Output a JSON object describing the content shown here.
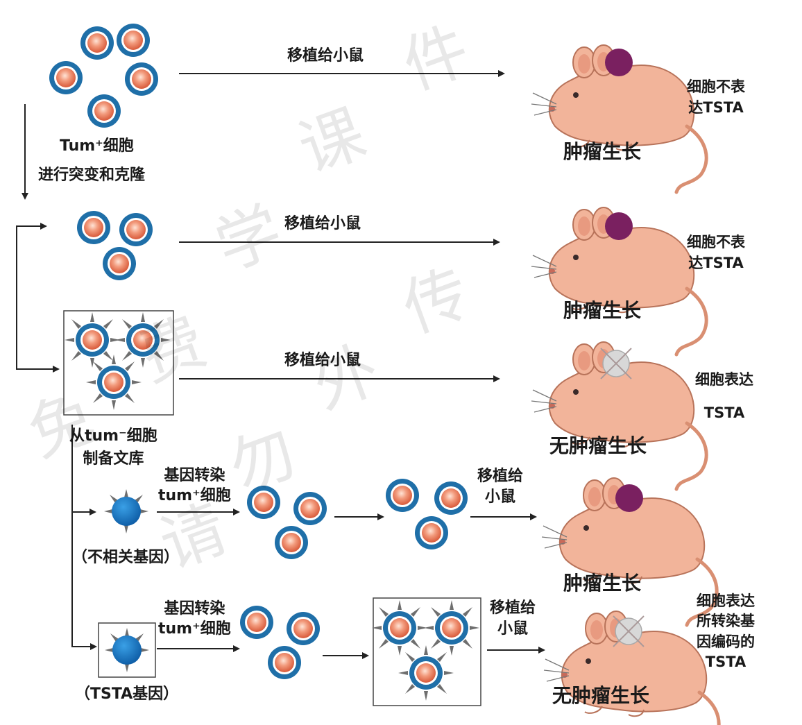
{
  "arrow_label": "移植给小鼠",
  "arrow_label_split": [
    "移植给",
    "小鼠"
  ],
  "tum_plus_cells": "Tum⁺细胞",
  "mutate_clone": "进行突变和克隆",
  "library_label": [
    "从tum⁻细胞",
    "制备文库"
  ],
  "transfect_label": [
    "基因转染",
    "tum⁺细胞"
  ],
  "unrelated_gene": "（不相关基因）",
  "tsta_gene": "（TSTA基因）",
  "tumor_growth": "肿瘤生长",
  "no_tumor_growth": "无肿瘤生长",
  "result_no_tsta": [
    "细胞不表",
    "达TSTA"
  ],
  "result_tsta": [
    "细胞表达",
    "TSTA"
  ],
  "result_transfected_tsta": [
    "细胞表达",
    "所转染基",
    "因编码的",
    "TSTA"
  ],
  "watermark": [
    "免",
    "费",
    "学",
    "课",
    "件",
    "请",
    "勿",
    "外",
    "传"
  ],
  "colors": {
    "cell_rim": "#1f6fa8",
    "cell_core": "#e8745a",
    "mouse": "#f2b49a",
    "tumor": "#7a2060",
    "gene_cell": "#1b78c4"
  }
}
